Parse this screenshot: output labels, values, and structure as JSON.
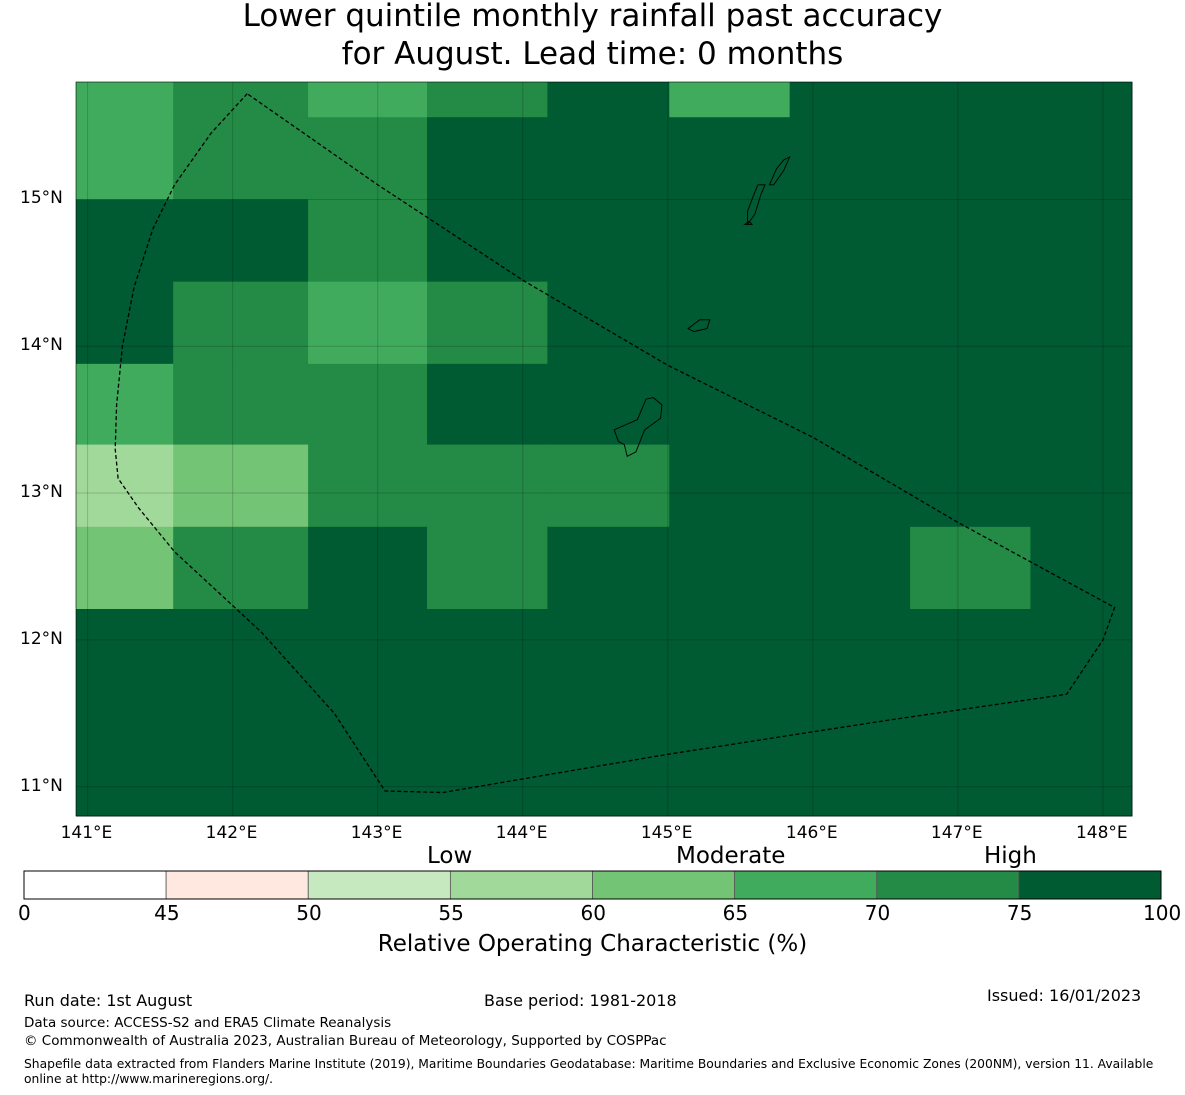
{
  "title": {
    "line1": "Lower quintile monthly rainfall past accuracy",
    "line2": "for August. Lead time: 0 months"
  },
  "map": {
    "lon_labels": [
      "141°E",
      "142°E",
      "143°E",
      "144°E",
      "145°E",
      "146°E",
      "147°E",
      "148°E"
    ],
    "lat_labels": [
      "15°N",
      "14°N",
      "13°N",
      "12°N",
      "11°N"
    ],
    "lon_range": [
      140.92,
      148.2
    ],
    "lat_range": [
      10.8,
      15.8
    ],
    "lon_edges": [
      140.92,
      141.59,
      142.52,
      143.34,
      144.17,
      145.01,
      145.84,
      146.67,
      147.5,
      148.2
    ],
    "lat_edges": [
      15.8,
      15.56,
      15.0,
      14.44,
      13.88,
      13.33,
      12.77,
      12.21,
      11.65,
      11.09,
      10.8
    ],
    "cell_values": [
      [
        67,
        72,
        67,
        72,
        80,
        67,
        80,
        80,
        80
      ],
      [
        67,
        72,
        72,
        80,
        80,
        80,
        80,
        80,
        80
      ],
      [
        80,
        80,
        72,
        80,
        80,
        80,
        80,
        80,
        80
      ],
      [
        80,
        72,
        67,
        72,
        80,
        80,
        80,
        80,
        80
      ],
      [
        67,
        72,
        72,
        80,
        80,
        80,
        80,
        80,
        80
      ],
      [
        57,
        62,
        72,
        72,
        72,
        80,
        80,
        80,
        80
      ],
      [
        62,
        72,
        80,
        72,
        80,
        80,
        80,
        72,
        80
      ],
      [
        80,
        80,
        80,
        80,
        80,
        80,
        80,
        80,
        80
      ],
      [
        80,
        80,
        80,
        80,
        80,
        80,
        80,
        80,
        80
      ],
      [
        80,
        80,
        80,
        80,
        80,
        80,
        80,
        80,
        80
      ]
    ],
    "eez_boundary": [
      [
        142.1,
        15.72
      ],
      [
        141.85,
        15.45
      ],
      [
        141.6,
        15.1
      ],
      [
        141.45,
        14.8
      ],
      [
        141.32,
        14.4
      ],
      [
        141.24,
        14.0
      ],
      [
        141.2,
        13.6
      ],
      [
        141.19,
        13.3
      ],
      [
        141.21,
        13.1
      ],
      [
        141.35,
        12.9
      ],
      [
        141.6,
        12.6
      ],
      [
        142.2,
        12.05
      ],
      [
        142.7,
        11.5
      ],
      [
        143.05,
        10.97
      ],
      [
        143.45,
        10.96
      ],
      [
        145.0,
        11.22
      ],
      [
        146.5,
        11.45
      ],
      [
        147.75,
        11.63
      ],
      [
        148.0,
        12.0
      ],
      [
        148.08,
        12.22
      ],
      [
        147.0,
        12.8
      ],
      [
        146.0,
        13.38
      ],
      [
        145.0,
        13.87
      ],
      [
        144.0,
        14.45
      ],
      [
        143.0,
        15.1
      ],
      [
        142.1,
        15.72
      ]
    ],
    "islands": [
      [
        [
          144.66,
          13.35
        ],
        [
          144.63,
          13.43
        ],
        [
          144.79,
          13.5
        ],
        [
          144.85,
          13.64
        ],
        [
          144.9,
          13.65
        ],
        [
          144.96,
          13.6
        ],
        [
          144.95,
          13.51
        ],
        [
          144.84,
          13.43
        ],
        [
          144.78,
          13.28
        ],
        [
          144.72,
          13.25
        ],
        [
          144.7,
          13.33
        ]
      ],
      [
        [
          145.14,
          14.12
        ],
        [
          145.22,
          14.18
        ],
        [
          145.29,
          14.18
        ],
        [
          145.27,
          14.12
        ],
        [
          145.18,
          14.1
        ]
      ],
      [
        [
          145.55,
          14.83
        ],
        [
          145.6,
          14.9
        ],
        [
          145.64,
          15.03
        ],
        [
          145.67,
          15.1
        ],
        [
          145.62,
          15.1
        ],
        [
          145.58,
          15.0
        ],
        [
          145.55,
          14.92
        ]
      ],
      [
        [
          145.7,
          15.1
        ],
        [
          145.75,
          15.21
        ],
        [
          145.8,
          15.27
        ],
        [
          145.84,
          15.29
        ],
        [
          145.8,
          15.2
        ],
        [
          145.73,
          15.1
        ]
      ],
      [
        [
          145.53,
          14.83
        ],
        [
          145.58,
          14.83
        ],
        [
          145.56,
          14.85
        ]
      ]
    ]
  },
  "colorbar": {
    "ticks": [
      "0",
      "45",
      "50",
      "55",
      "60",
      "65",
      "70",
      "75",
      "100"
    ],
    "colors": [
      "#ffffff",
      "#fee8df",
      "#c7e9c0",
      "#a1d99b",
      "#74c476",
      "#41ab5d",
      "#238b45",
      "#005a32"
    ],
    "categories": [
      "Low",
      "Moderate",
      "High"
    ],
    "title": "Relative Operating Characteristic (%)"
  },
  "footer": {
    "run_date": "Run date: 1st August",
    "base_period": "Base period: 1981-2018",
    "issued": "Issued: 16/01/2023",
    "data_source": "Data source: ACCESS-S2 and ERA5 Climate Reanalysis",
    "copyright": "© Commonwealth of Australia 2023, Australian Bureau of Meteorology, Supported by COSPPac",
    "shapefile": "Shapefile data extracted from Flanders Marine Institute (2019), Maritime Boundaries Geodatabase: Maritime Boundaries and Exclusive Economic Zones (200NM), version 11. Available online at http://www.marineregions.org/."
  }
}
